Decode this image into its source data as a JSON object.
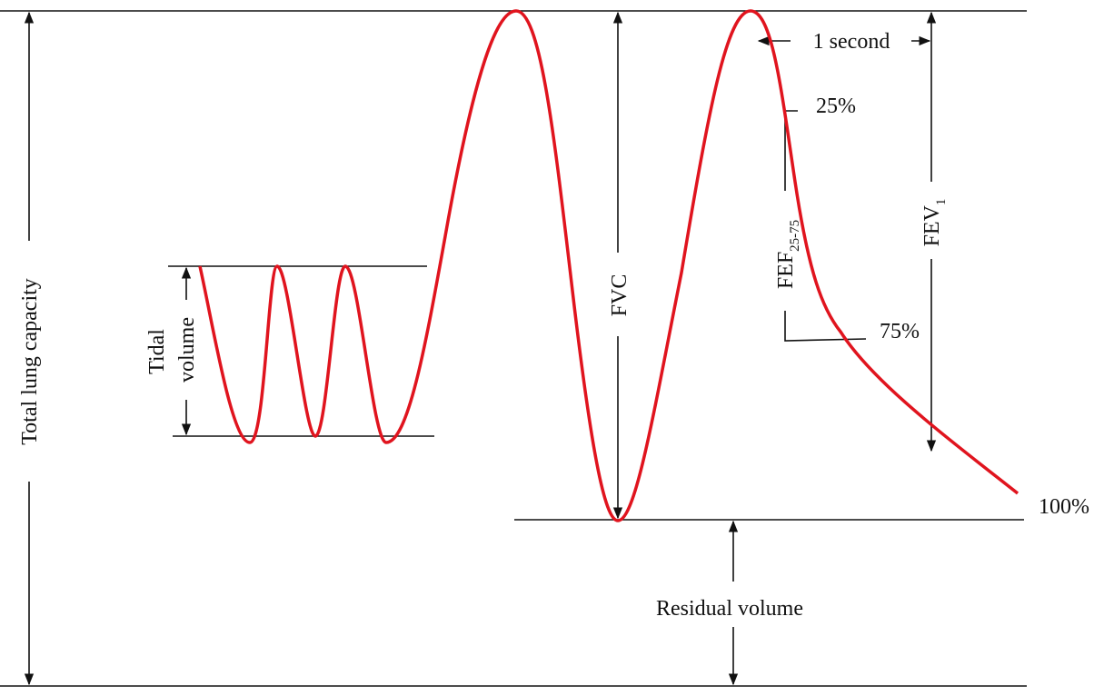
{
  "labels": {
    "total_lung_capacity": "Total lung capacity",
    "tidal": "Tidal",
    "volume": "volume",
    "fvc": "FVC",
    "fef_main": "FEF",
    "fef_sub": "25-75",
    "fev_main": "FEV",
    "fev_sub": "1",
    "one_second": "1 second",
    "pct_25": "25%",
    "pct_75": "75%",
    "pct_100": "100%",
    "residual_volume": "Residual volume"
  },
  "colors": {
    "curve": "#e0141e",
    "lines": "#111111"
  }
}
